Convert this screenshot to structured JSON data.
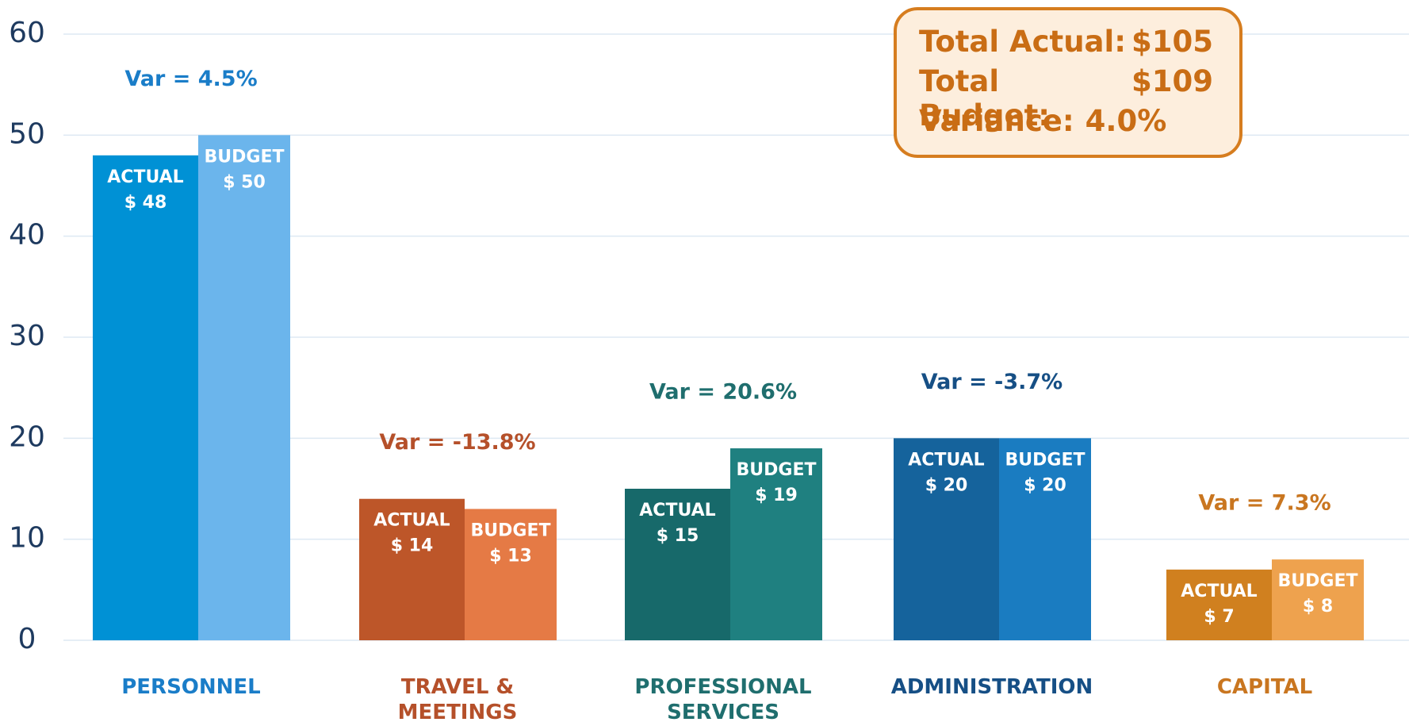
{
  "chart_data": {
    "type": "bar",
    "categories": [
      "PERSONNEL",
      "TRAVEL & MEETINGS",
      "PROFESSIONAL SERVICES",
      "ADMINISTRATION",
      "CAPITAL"
    ],
    "category_colors": [
      "#1a7dc8",
      "#b5502a",
      "#1f6e6e",
      "#164f85",
      "#c97620"
    ],
    "series": [
      {
        "name": "ACTUAL",
        "values": [
          48,
          14,
          15,
          20,
          7
        ],
        "value_labels": [
          "$ 48",
          "$ 14",
          "$ 15",
          "$ 20",
          "$ 7"
        ],
        "colors": [
          "#0091d5",
          "#bd5629",
          "#17696a",
          "#15639c",
          "#d0801f"
        ]
      },
      {
        "name": "BUDGET",
        "values": [
          50,
          13,
          19,
          20,
          8
        ],
        "value_labels": [
          "$ 50",
          "$ 13",
          "$ 19",
          "$ 20",
          "$ 8"
        ],
        "colors": [
          "#6bb5ec",
          "#e57a45",
          "#1f8080",
          "#1a7cc1",
          "#eea24e"
        ]
      }
    ],
    "annotations": [
      "Var = 4.5%",
      "Var = -13.8%",
      "Var = 20.6%",
      "Var = -3.7%",
      "Var = 7.3%"
    ],
    "summary": [
      {
        "label": "Total Actual:",
        "value": "$105"
      },
      {
        "label": "Total Budget:",
        "value": "$109"
      },
      {
        "label": "Variance:",
        "value": "4.0%"
      }
    ],
    "ylim": [
      0,
      60
    ],
    "yticks": [
      0,
      10,
      20,
      30,
      40,
      50,
      60
    ],
    "grid": true
  }
}
